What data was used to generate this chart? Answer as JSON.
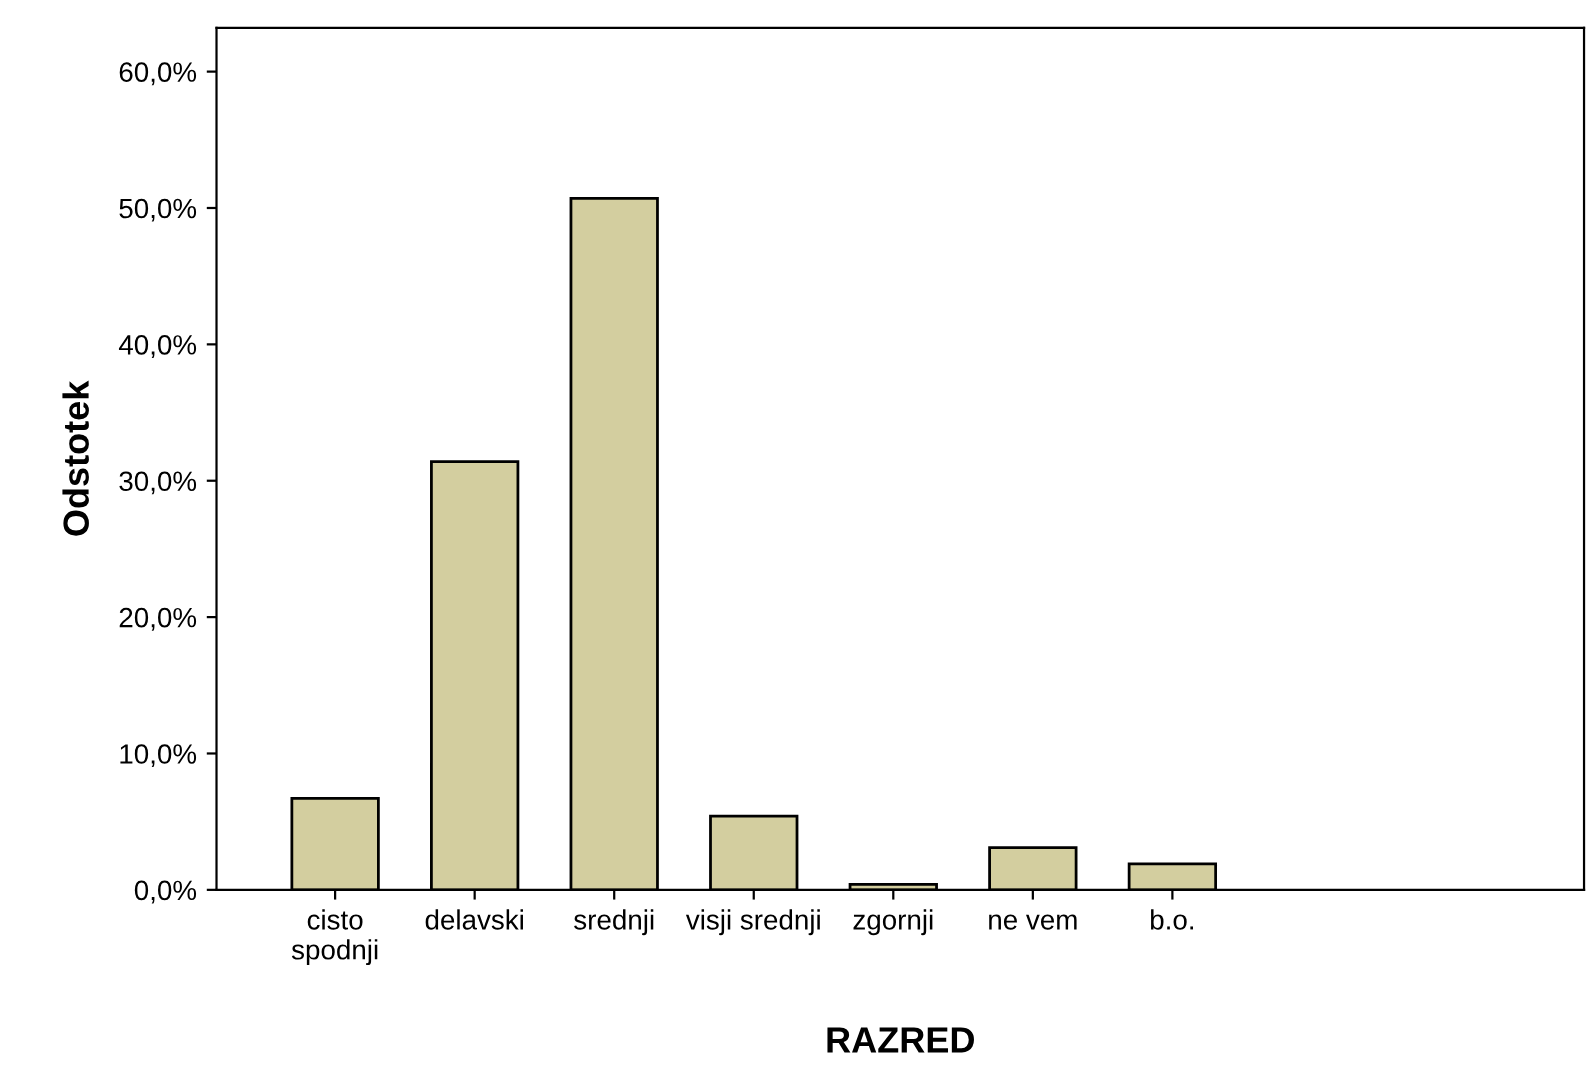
{
  "chart_data": {
    "type": "bar",
    "xlabel": "RAZRED",
    "ylabel": "Odstotek",
    "categories": [
      "cisto\nspodnji",
      "delavski",
      "srednji",
      "visji srednji",
      "zgornji",
      "ne vem",
      "b.o."
    ],
    "values": [
      6.7,
      31.4,
      50.7,
      5.4,
      0.4,
      3.1,
      1.9
    ],
    "color": "#d3ce9f",
    "ylim": [
      0,
      63.2
    ],
    "yticks": [
      {
        "value": 0,
        "label": "0,0%"
      },
      {
        "value": 10,
        "label": "10,0%"
      },
      {
        "value": 20,
        "label": "20,0%"
      },
      {
        "value": 30,
        "label": "30,0%"
      },
      {
        "value": 40,
        "label": "40,0%"
      },
      {
        "value": 50,
        "label": "50,0%"
      },
      {
        "value": 60,
        "label": "60,0%"
      }
    ],
    "grid": false
  }
}
